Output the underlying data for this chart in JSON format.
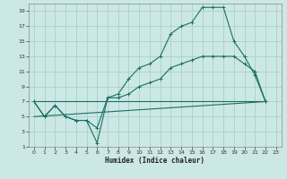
{
  "xlabel": "Humidex (Indice chaleur)",
  "bg_color": "#cce8e4",
  "grid_color": "#aacfc8",
  "line_color": "#1a6e66",
  "xlim": [
    -0.5,
    23.5
  ],
  "ylim": [
    1,
    20
  ],
  "xticks": [
    0,
    1,
    2,
    3,
    4,
    5,
    6,
    7,
    8,
    9,
    10,
    11,
    12,
    13,
    14,
    15,
    16,
    17,
    18,
    19,
    20,
    21,
    22,
    23
  ],
  "yticks": [
    1,
    3,
    5,
    7,
    9,
    11,
    13,
    15,
    17,
    19
  ],
  "line1_x": [
    0,
    1,
    2,
    3,
    4,
    5,
    6,
    7,
    8,
    9,
    10,
    11,
    12,
    13,
    14,
    15,
    16,
    17,
    18,
    19,
    20,
    21,
    22
  ],
  "line1_y": [
    7,
    5,
    6.5,
    5,
    4.5,
    4.5,
    1.5,
    7.5,
    8,
    10,
    11.5,
    12,
    13,
    16,
    17,
    17.5,
    19.5,
    19.5,
    19.5,
    15,
    13,
    10.5,
    7
  ],
  "line2_x": [
    0,
    1,
    2,
    3,
    4,
    5,
    6,
    7,
    8,
    9,
    10,
    11,
    12,
    13,
    14,
    15,
    16,
    17,
    18,
    19,
    20,
    21,
    22
  ],
  "line2_y": [
    7,
    5,
    6.5,
    5,
    4.5,
    4.5,
    3.5,
    7.5,
    7.5,
    8,
    9,
    9.5,
    10,
    11.5,
    12,
    12.5,
    13,
    13,
    13,
    13,
    12,
    11,
    7
  ],
  "line3_x": [
    0,
    22
  ],
  "line3_y": [
    7,
    7
  ],
  "line4_x": [
    0,
    22
  ],
  "line4_y": [
    5,
    7
  ],
  "marker": "+"
}
